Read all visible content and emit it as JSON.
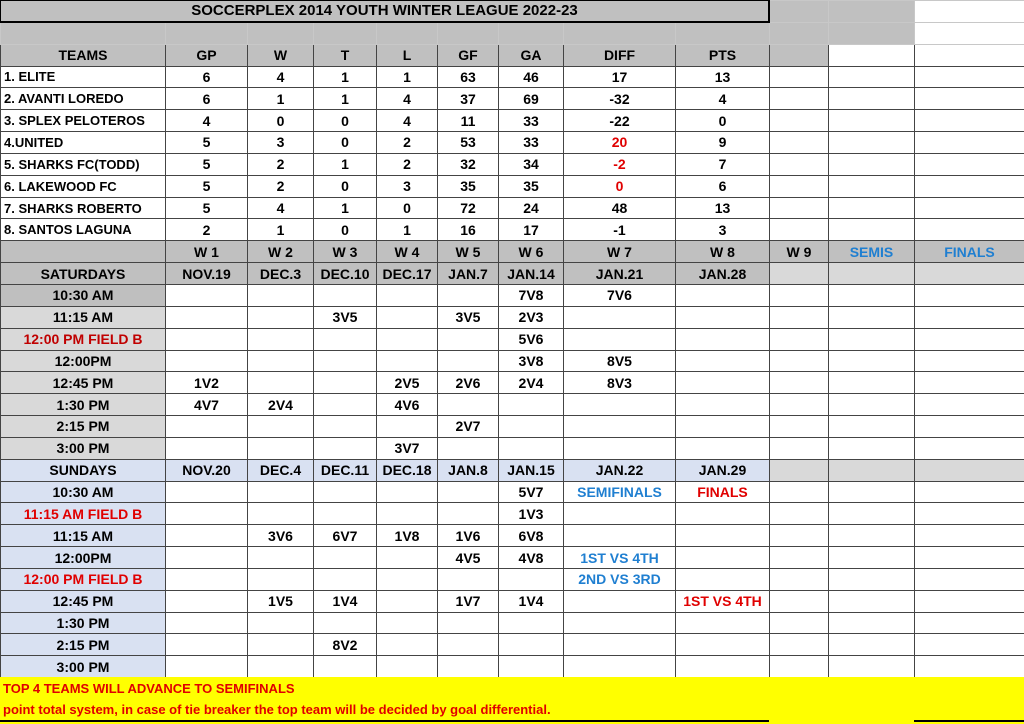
{
  "title": "SOCCERPLEX 2014 YOUTH WINTER LEAGUE 2022-23",
  "colors": {
    "header_gray": "#c0c0c0",
    "sunday_blue": "#d9e1f2",
    "highlight_red": "#e00000",
    "label_blue": "#1f7fd1",
    "footer_yellow": "#ffff00"
  },
  "standings": {
    "headers": [
      "TEAMS",
      "GP",
      "W",
      "T",
      "L",
      "GF",
      "GA",
      "DIFF",
      "PTS"
    ],
    "rows": [
      {
        "team": "1. ELITE",
        "gp": "6",
        "w": "4",
        "t": "1",
        "l": "1",
        "gf": "63",
        "ga": "46",
        "diff": "17",
        "pts": "13",
        "diff_red": false
      },
      {
        "team": "2. AVANTI LOREDO",
        "gp": "6",
        "w": "1",
        "t": "1",
        "l": "4",
        "gf": "37",
        "ga": "69",
        "diff": "-32",
        "pts": "4",
        "diff_red": false
      },
      {
        "team": "3. SPLEX PELOTEROS",
        "gp": "4",
        "w": "0",
        "t": "0",
        "l": "4",
        "gf": "11",
        "ga": "33",
        "diff": "-22",
        "pts": "0",
        "diff_red": false
      },
      {
        "team": "4.UNITED",
        "gp": "5",
        "w": "3",
        "t": "0",
        "l": "2",
        "gf": "53",
        "ga": "33",
        "diff": "20",
        "pts": "9",
        "diff_red": true
      },
      {
        "team": "5. SHARKS FC(TODD)",
        "gp": "5",
        "w": "2",
        "t": "1",
        "l": "2",
        "gf": "32",
        "ga": "34",
        "diff": "-2",
        "pts": "7",
        "diff_red": true
      },
      {
        "team": "6. LAKEWOOD FC",
        "gp": "5",
        "w": "2",
        "t": "0",
        "l": "3",
        "gf": "35",
        "ga": "35",
        "diff": "0",
        "pts": "6",
        "diff_red": true
      },
      {
        "team": "7. SHARKS ROBERTO",
        "gp": "5",
        "w": "4",
        "t": "1",
        "l": "0",
        "gf": "72",
        "ga": "24",
        "diff": "48",
        "pts": "13",
        "diff_red": false
      },
      {
        "team": "8. SANTOS LAGUNA",
        "gp": "2",
        "w": "1",
        "t": "0",
        "l": "1",
        "gf": "16",
        "ga": "17",
        "diff": "-1",
        "pts": "3",
        "diff_red": false
      }
    ]
  },
  "weeks": [
    "W 1",
    "W 2",
    "W 3",
    "W 4",
    "W 5",
    "W 6",
    "W 7",
    "W 8",
    "W 9",
    "SEMIS",
    "FINALS"
  ],
  "saturdays": {
    "label": "SATURDAYS",
    "dates": [
      "NOV.19",
      "DEC.3",
      "DEC.10",
      "DEC.17",
      "JAN.7",
      "JAN.14",
      "JAN.21",
      "JAN.28",
      "",
      "",
      ""
    ],
    "slots": [
      {
        "time": "10:30 AM",
        "style": "dark",
        "games": [
          "",
          "",
          "",
          "",
          "",
          "7V8",
          "7V6",
          "",
          "",
          "",
          ""
        ]
      },
      {
        "time": "11:15 AM",
        "style": "",
        "games": [
          "",
          "",
          "3V5",
          "",
          "3V5",
          "2V3",
          "",
          "",
          "",
          "",
          ""
        ]
      },
      {
        "time": "12:00 PM FIELD B",
        "style": "field-b",
        "games": [
          "",
          "",
          "",
          "",
          "",
          "5V6",
          "",
          "",
          "",
          "",
          ""
        ]
      },
      {
        "time": "12:00PM",
        "style": "",
        "games": [
          "",
          "",
          "",
          "",
          "",
          "3V8",
          "8V5",
          "",
          "",
          "",
          ""
        ]
      },
      {
        "time": "12:45 PM",
        "style": "",
        "games": [
          "1V2",
          "",
          "",
          "2V5",
          "2V6",
          "2V4",
          "8V3",
          "",
          "",
          "",
          ""
        ]
      },
      {
        "time": "1:30 PM",
        "style": "",
        "games": [
          "4V7",
          "2V4",
          "",
          "4V6",
          "",
          "",
          "",
          "",
          "",
          "",
          ""
        ]
      },
      {
        "time": "2:15 PM",
        "style": "",
        "games": [
          "",
          "",
          "",
          "",
          "2V7",
          "",
          "",
          "",
          "",
          "",
          ""
        ]
      },
      {
        "time": "3:00 PM",
        "style": "",
        "games": [
          "",
          "",
          "",
          "3V7",
          "",
          "",
          "",
          "",
          "",
          "",
          ""
        ]
      }
    ]
  },
  "sundays": {
    "label": "SUNDAYS",
    "dates": [
      "NOV.20",
      "DEC.4",
      "DEC.11",
      "DEC.18",
      "JAN.8",
      "JAN.15",
      "JAN.22",
      "JAN.29",
      "",
      "",
      ""
    ],
    "slots": [
      {
        "time": "10:30 AM",
        "style": "",
        "games": [
          "",
          "",
          "",
          "",
          "",
          "5V7",
          "SEMIFINALS",
          "FINALS",
          "",
          "",
          ""
        ]
      },
      {
        "time": "11:15 AM FIELD B",
        "style": "field-b",
        "games": [
          "",
          "",
          "",
          "",
          "",
          "1V3",
          "",
          "",
          "",
          "",
          ""
        ]
      },
      {
        "time": "11:15 AM",
        "style": "",
        "games": [
          "",
          "3V6",
          "6V7",
          "1V8",
          "1V6",
          "6V8",
          "",
          "",
          "",
          "",
          ""
        ]
      },
      {
        "time": "12:00PM",
        "style": "",
        "games": [
          "",
          "",
          "",
          "",
          "4V5",
          "4V8",
          "1ST VS 4TH",
          "",
          "",
          "",
          ""
        ]
      },
      {
        "time": "12:00 PM FIELD B",
        "style": "field-b",
        "games": [
          "",
          "",
          "",
          "",
          "",
          "",
          "2ND VS 3RD",
          "",
          "",
          "",
          ""
        ]
      },
      {
        "time": "12:45 PM",
        "style": "",
        "games": [
          "",
          "1V5",
          "1V4",
          "",
          "1V7",
          "1V4",
          "",
          "1ST VS 4TH",
          "",
          "",
          ""
        ]
      },
      {
        "time": "1:30 PM",
        "style": "",
        "games": [
          "",
          "",
          "",
          "",
          "",
          "",
          "",
          "",
          "",
          "",
          ""
        ]
      },
      {
        "time": "2:15 PM",
        "style": "",
        "games": [
          "",
          "",
          "8V2",
          "",
          "",
          "",
          "",
          "",
          "",
          "",
          ""
        ]
      },
      {
        "time": "3:00 PM",
        "style": "",
        "games": [
          "",
          "",
          "",
          "",
          "",
          "",
          "",
          "",
          "",
          "",
          ""
        ]
      }
    ]
  },
  "special_colors": {
    "SEMIFINALS": "blue",
    "1ST VS 4TH@6": "blue",
    "2ND VS 3RD": "blue",
    "FINALS": "red",
    "1ST VS 4TH@7": "red"
  },
  "footer": {
    "line1": "TOP 4 TEAMS WILL ADVANCE TO SEMIFINALS",
    "line2": "point total system, in case of tie breaker the top team will be decided by goal differential."
  }
}
